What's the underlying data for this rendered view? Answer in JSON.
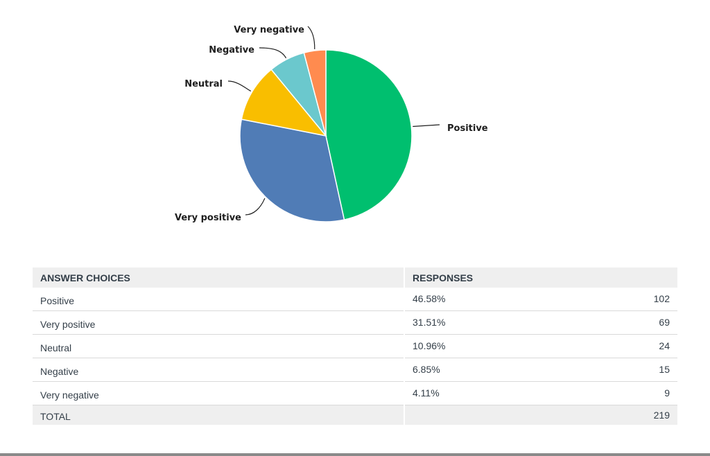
{
  "chart_data": {
    "type": "pie",
    "title": "",
    "slices": [
      {
        "label": "Positive",
        "value": 102,
        "color": "#00bf6f"
      },
      {
        "label": "Very positive",
        "value": 69,
        "color": "#507cb6"
      },
      {
        "label": "Neutral",
        "value": 24,
        "color": "#f9be00"
      },
      {
        "label": "Negative",
        "value": 15,
        "color": "#6bc8cd"
      },
      {
        "label": "Very negative",
        "value": 9,
        "color": "#ff8b4f"
      }
    ],
    "start": "12 o'clock",
    "direction": "clockwise",
    "legend": "none"
  },
  "table": {
    "headers": {
      "choices": "ANSWER CHOICES",
      "responses": "RESPONSES"
    },
    "rows": [
      {
        "choice": "Positive",
        "percent": "46.58%",
        "count": "102"
      },
      {
        "choice": "Very positive",
        "percent": "31.51%",
        "count": "69"
      },
      {
        "choice": "Neutral",
        "percent": "10.96%",
        "count": "24"
      },
      {
        "choice": "Negative",
        "percent": "6.85%",
        "count": "15"
      },
      {
        "choice": "Very negative",
        "percent": "4.11%",
        "count": "9"
      }
    ],
    "total": {
      "label": "TOTAL",
      "count": "219"
    }
  }
}
